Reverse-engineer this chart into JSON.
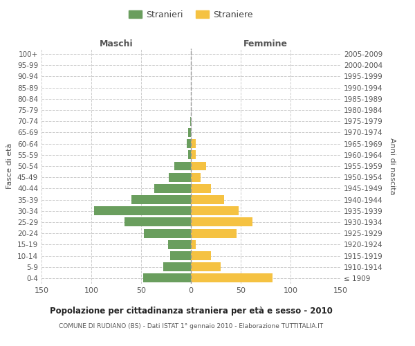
{
  "age_groups": [
    "100+",
    "95-99",
    "90-94",
    "85-89",
    "80-84",
    "75-79",
    "70-74",
    "65-69",
    "60-64",
    "55-59",
    "50-54",
    "45-49",
    "40-44",
    "35-39",
    "30-34",
    "25-29",
    "20-24",
    "15-19",
    "10-14",
    "5-9",
    "0-4"
  ],
  "birth_years": [
    "≤ 1909",
    "1910-1914",
    "1915-1919",
    "1920-1924",
    "1925-1929",
    "1930-1934",
    "1935-1939",
    "1940-1944",
    "1945-1949",
    "1950-1954",
    "1955-1959",
    "1960-1964",
    "1965-1969",
    "1970-1974",
    "1975-1979",
    "1980-1984",
    "1985-1989",
    "1990-1994",
    "1995-1999",
    "2000-2004",
    "2005-2009"
  ],
  "males": [
    0,
    0,
    0,
    0,
    0,
    0,
    1,
    3,
    4,
    3,
    17,
    22,
    37,
    60,
    97,
    67,
    47,
    23,
    21,
    28,
    48
  ],
  "females": [
    0,
    0,
    0,
    0,
    0,
    0,
    0,
    0,
    5,
    5,
    15,
    10,
    20,
    33,
    48,
    62,
    46,
    5,
    20,
    30,
    82
  ],
  "male_color": "#6a9e5e",
  "female_color": "#f5c242",
  "background_color": "#ffffff",
  "grid_color": "#cccccc",
  "title": "Popolazione per cittadinanza straniera per età e sesso - 2010",
  "subtitle": "COMUNE DI RUDIANO (BS) - Dati ISTAT 1° gennaio 2010 - Elaborazione TUTTITALIA.IT",
  "xlabel_left": "Maschi",
  "xlabel_right": "Femmine",
  "ylabel_left": "Fasce di età",
  "ylabel_right": "Anni di nascita",
  "legend_male": "Stranieri",
  "legend_female": "Straniere",
  "xlim": 150,
  "bar_height": 0.8
}
